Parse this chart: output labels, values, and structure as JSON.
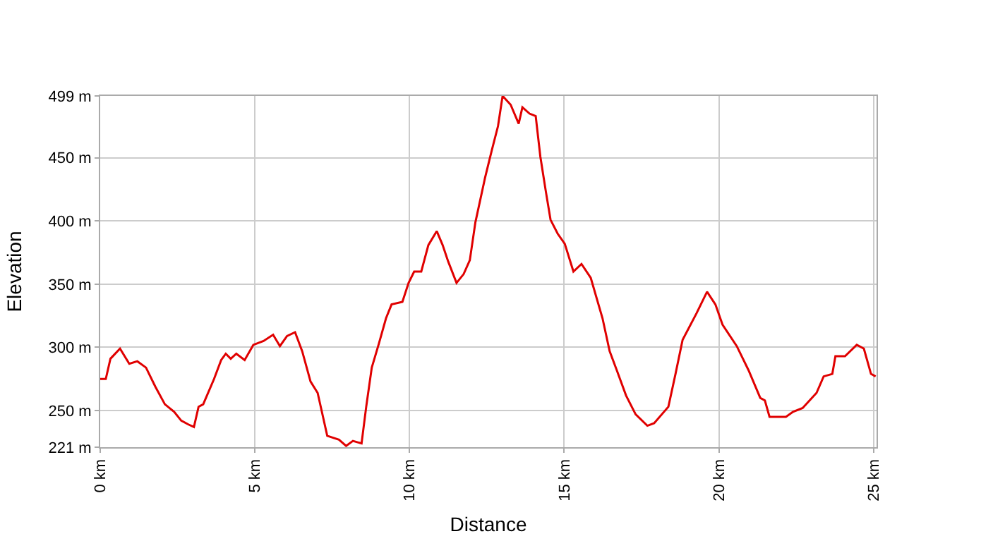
{
  "chart_data": {
    "type": "line",
    "xlabel": "Distance",
    "ylabel": "Elevation",
    "xlim": [
      0,
      25.1
    ],
    "ylim": [
      221,
      499
    ],
    "xticks": [
      {
        "value": 0,
        "label": "0 km"
      },
      {
        "value": 5,
        "label": "5 km"
      },
      {
        "value": 10,
        "label": "10 km"
      },
      {
        "value": 15,
        "label": "15 km"
      },
      {
        "value": 20,
        "label": "20 km"
      },
      {
        "value": 25,
        "label": "25 km"
      }
    ],
    "yticks": [
      {
        "value": 221,
        "label": "221 m"
      },
      {
        "value": 250,
        "label": "250 m"
      },
      {
        "value": 300,
        "label": "300 m"
      },
      {
        "value": 350,
        "label": "350 m"
      },
      {
        "value": 400,
        "label": "400 m"
      },
      {
        "value": 450,
        "label": "450 m"
      },
      {
        "value": 499,
        "label": "499 m"
      }
    ],
    "grid": true,
    "marker": "none",
    "line_style": "solid",
    "series": [
      {
        "color": "#e00000",
        "x": [
          0,
          0.18,
          0.33,
          0.64,
          0.94,
          1.2,
          1.48,
          1.78,
          2.09,
          2.39,
          2.62,
          2.85,
          3.03,
          3.18,
          3.33,
          3.68,
          3.91,
          4.06,
          4.22,
          4.4,
          4.67,
          4.95,
          5.28,
          5.59,
          5.81,
          6.04,
          6.3,
          6.53,
          6.8,
          7.03,
          7.34,
          7.72,
          7.95,
          8.17,
          8.45,
          8.6,
          8.78,
          9.01,
          9.24,
          9.42,
          9.77,
          9.97,
          10.15,
          10.38,
          10.61,
          10.88,
          11.07,
          11.25,
          11.52,
          11.75,
          11.95,
          12.13,
          12.44,
          12.66,
          12.86,
          13.01,
          13.27,
          13.53,
          13.65,
          13.88,
          14.08,
          14.23,
          14.41,
          14.56,
          14.79,
          15.02,
          15.3,
          15.56,
          15.86,
          16.24,
          16.47,
          16.7,
          17.0,
          17.31,
          17.69,
          17.91,
          18.37,
          18.6,
          18.83,
          19.28,
          19.62,
          19.89,
          20.12,
          20.58,
          20.96,
          21.34,
          21.49,
          21.64,
          22.17,
          22.4,
          22.71,
          23.16,
          23.39,
          23.67,
          23.77,
          24.08,
          24.46,
          24.69,
          24.92,
          25.07
        ],
        "values": [
          275,
          275,
          291,
          299,
          287,
          289,
          284,
          269,
          255,
          249,
          242,
          239,
          237,
          253,
          255,
          275,
          290,
          295,
          291,
          295,
          290,
          302,
          305,
          310,
          301,
          309,
          312,
          297,
          273,
          264,
          230,
          227,
          222,
          226,
          224,
          253,
          284,
          303,
          323,
          334,
          336,
          351,
          360,
          360,
          381,
          392,
          381,
          368,
          351,
          358,
          369,
          399,
          434,
          456,
          475,
          499,
          492,
          477,
          490,
          485,
          483,
          451,
          423,
          401,
          390,
          382,
          360,
          366,
          355,
          323,
          297,
          282,
          262,
          247,
          238,
          240,
          253,
          279,
          306,
          327,
          344,
          334,
          318,
          301,
          282,
          260,
          258,
          245,
          245,
          249,
          252,
          264,
          277,
          279,
          293,
          293,
          302,
          299,
          279,
          277
        ]
      }
    ]
  }
}
